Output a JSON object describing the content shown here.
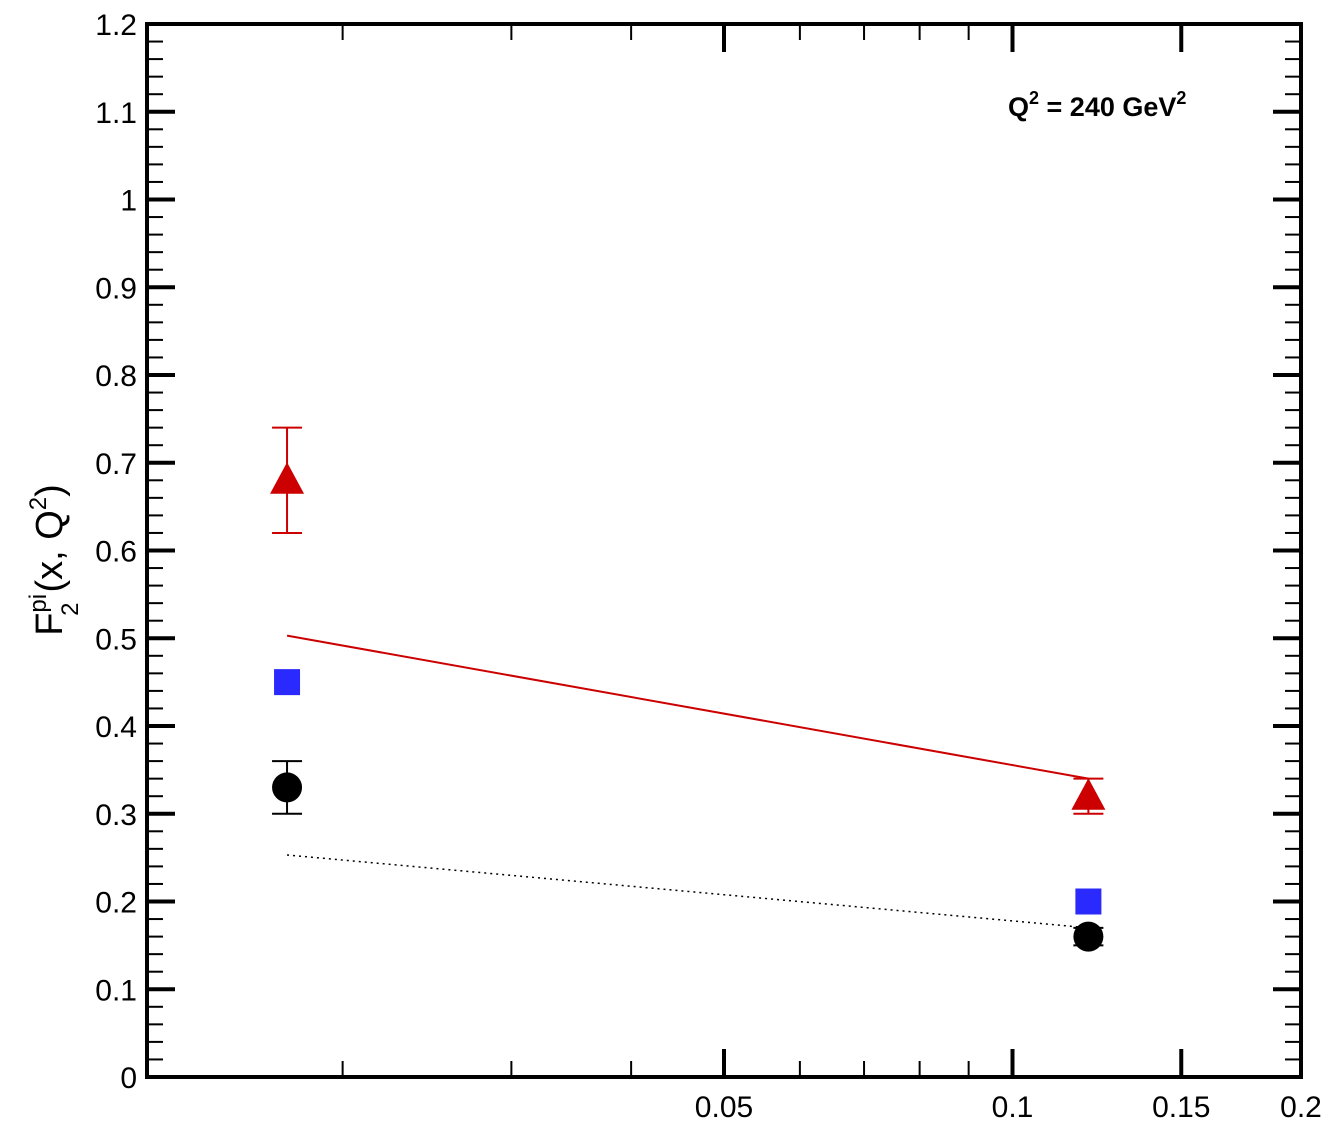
{
  "chart_data": {
    "type": "scatter",
    "xscale": "log",
    "xlim": [
      0.0125,
      0.2
    ],
    "ylim": [
      0,
      1.2
    ],
    "yticks": [
      "0",
      "0.1",
      "0.2",
      "0.3",
      "0.4",
      "0.5",
      "0.6",
      "0.7",
      "0.8",
      "0.9",
      "1",
      "1.1",
      "1.2"
    ],
    "xticks": [
      "0.05",
      "0.1",
      "0.15",
      "0.2"
    ],
    "ylabel": {
      "main": "F",
      "superscript": "pi",
      "subscript": "2",
      "args_prefix": "(x, Q",
      "args_sup": "2",
      "args_suffix": ")"
    },
    "annotation": {
      "prefix": "Q",
      "sup1": "2",
      "middle": " = 240 GeV",
      "sup2": "2"
    },
    "grid": false,
    "series": [
      {
        "marker": "triangle",
        "color": "#cc0000",
        "points": [
          {
            "x": 0.0175,
            "y": 0.68,
            "err_low": 0.06,
            "err_high": 0.06
          },
          {
            "x": 0.12,
            "y": 0.32,
            "err_low": 0.02,
            "err_high": 0.02
          }
        ]
      },
      {
        "marker": "square",
        "color": "#2a2aff",
        "points": [
          {
            "x": 0.0175,
            "y": 0.45
          },
          {
            "x": 0.12,
            "y": 0.2
          }
        ]
      },
      {
        "marker": "circle",
        "color": "#000000",
        "points": [
          {
            "x": 0.0175,
            "y": 0.33,
            "err_low": 0.03,
            "err_high": 0.03
          },
          {
            "x": 0.12,
            "y": 0.16,
            "err_low": 0.01,
            "err_high": 0.01
          }
        ]
      }
    ],
    "lines": [
      {
        "style": "solid",
        "color": "#cc0000",
        "x": [
          0.0175,
          0.12
        ],
        "y": [
          0.503,
          0.34
        ]
      },
      {
        "style": "dotted",
        "color": "#000000",
        "x": [
          0.0175,
          0.12
        ],
        "y": [
          0.253,
          0.17
        ]
      }
    ]
  }
}
